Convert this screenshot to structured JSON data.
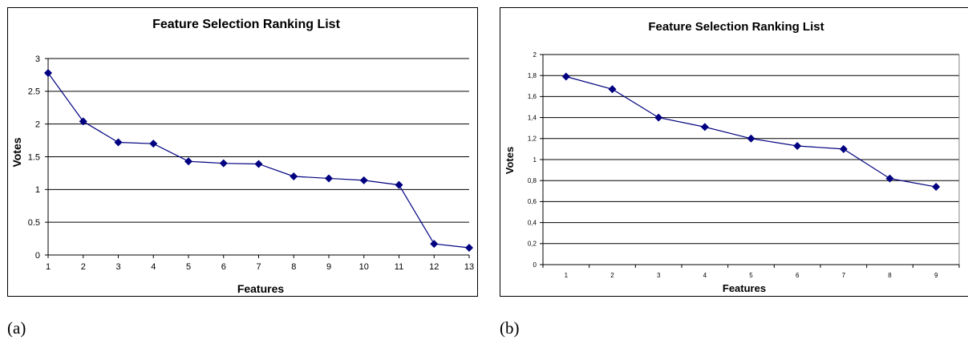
{
  "chart_data": [
    {
      "type": "line",
      "panel_label": "(a)",
      "title": "Feature Selection Ranking List",
      "xlabel": "Features",
      "ylabel": "Votes",
      "categories": [
        "1",
        "2",
        "3",
        "4",
        "5",
        "6",
        "7",
        "8",
        "9",
        "10",
        "11",
        "12",
        "13"
      ],
      "series": [
        {
          "values": [
            2.78,
            2.04,
            1.72,
            1.7,
            1.43,
            1.4,
            1.39,
            1.2,
            1.17,
            1.14,
            1.07,
            0.17,
            0.11
          ]
        }
      ],
      "ylim": [
        0,
        3
      ],
      "yticks": [
        "0",
        "0.5",
        "1",
        "1.5",
        "2",
        "2.5",
        "3"
      ],
      "grid": true,
      "line_color": "#000080",
      "marker": "diamond"
    },
    {
      "type": "line",
      "panel_label": "(b)",
      "title": "Feature Selection Ranking List",
      "xlabel": "Features",
      "ylabel": "Votes",
      "categories": [
        "1",
        "2",
        "3",
        "4",
        "5",
        "6",
        "7",
        "8",
        "9"
      ],
      "series": [
        {
          "values": [
            1.79,
            1.67,
            1.4,
            1.31,
            1.2,
            1.13,
            1.1,
            0.82,
            0.74
          ]
        }
      ],
      "ylim": [
        0,
        2
      ],
      "yticks": [
        "0",
        "0,2",
        "0,4",
        "0,6",
        "0,8",
        "1",
        "1,2",
        "1,4",
        "1,6",
        "1,8",
        "2"
      ],
      "grid": true,
      "line_color": "#000080",
      "marker": "diamond"
    }
  ]
}
